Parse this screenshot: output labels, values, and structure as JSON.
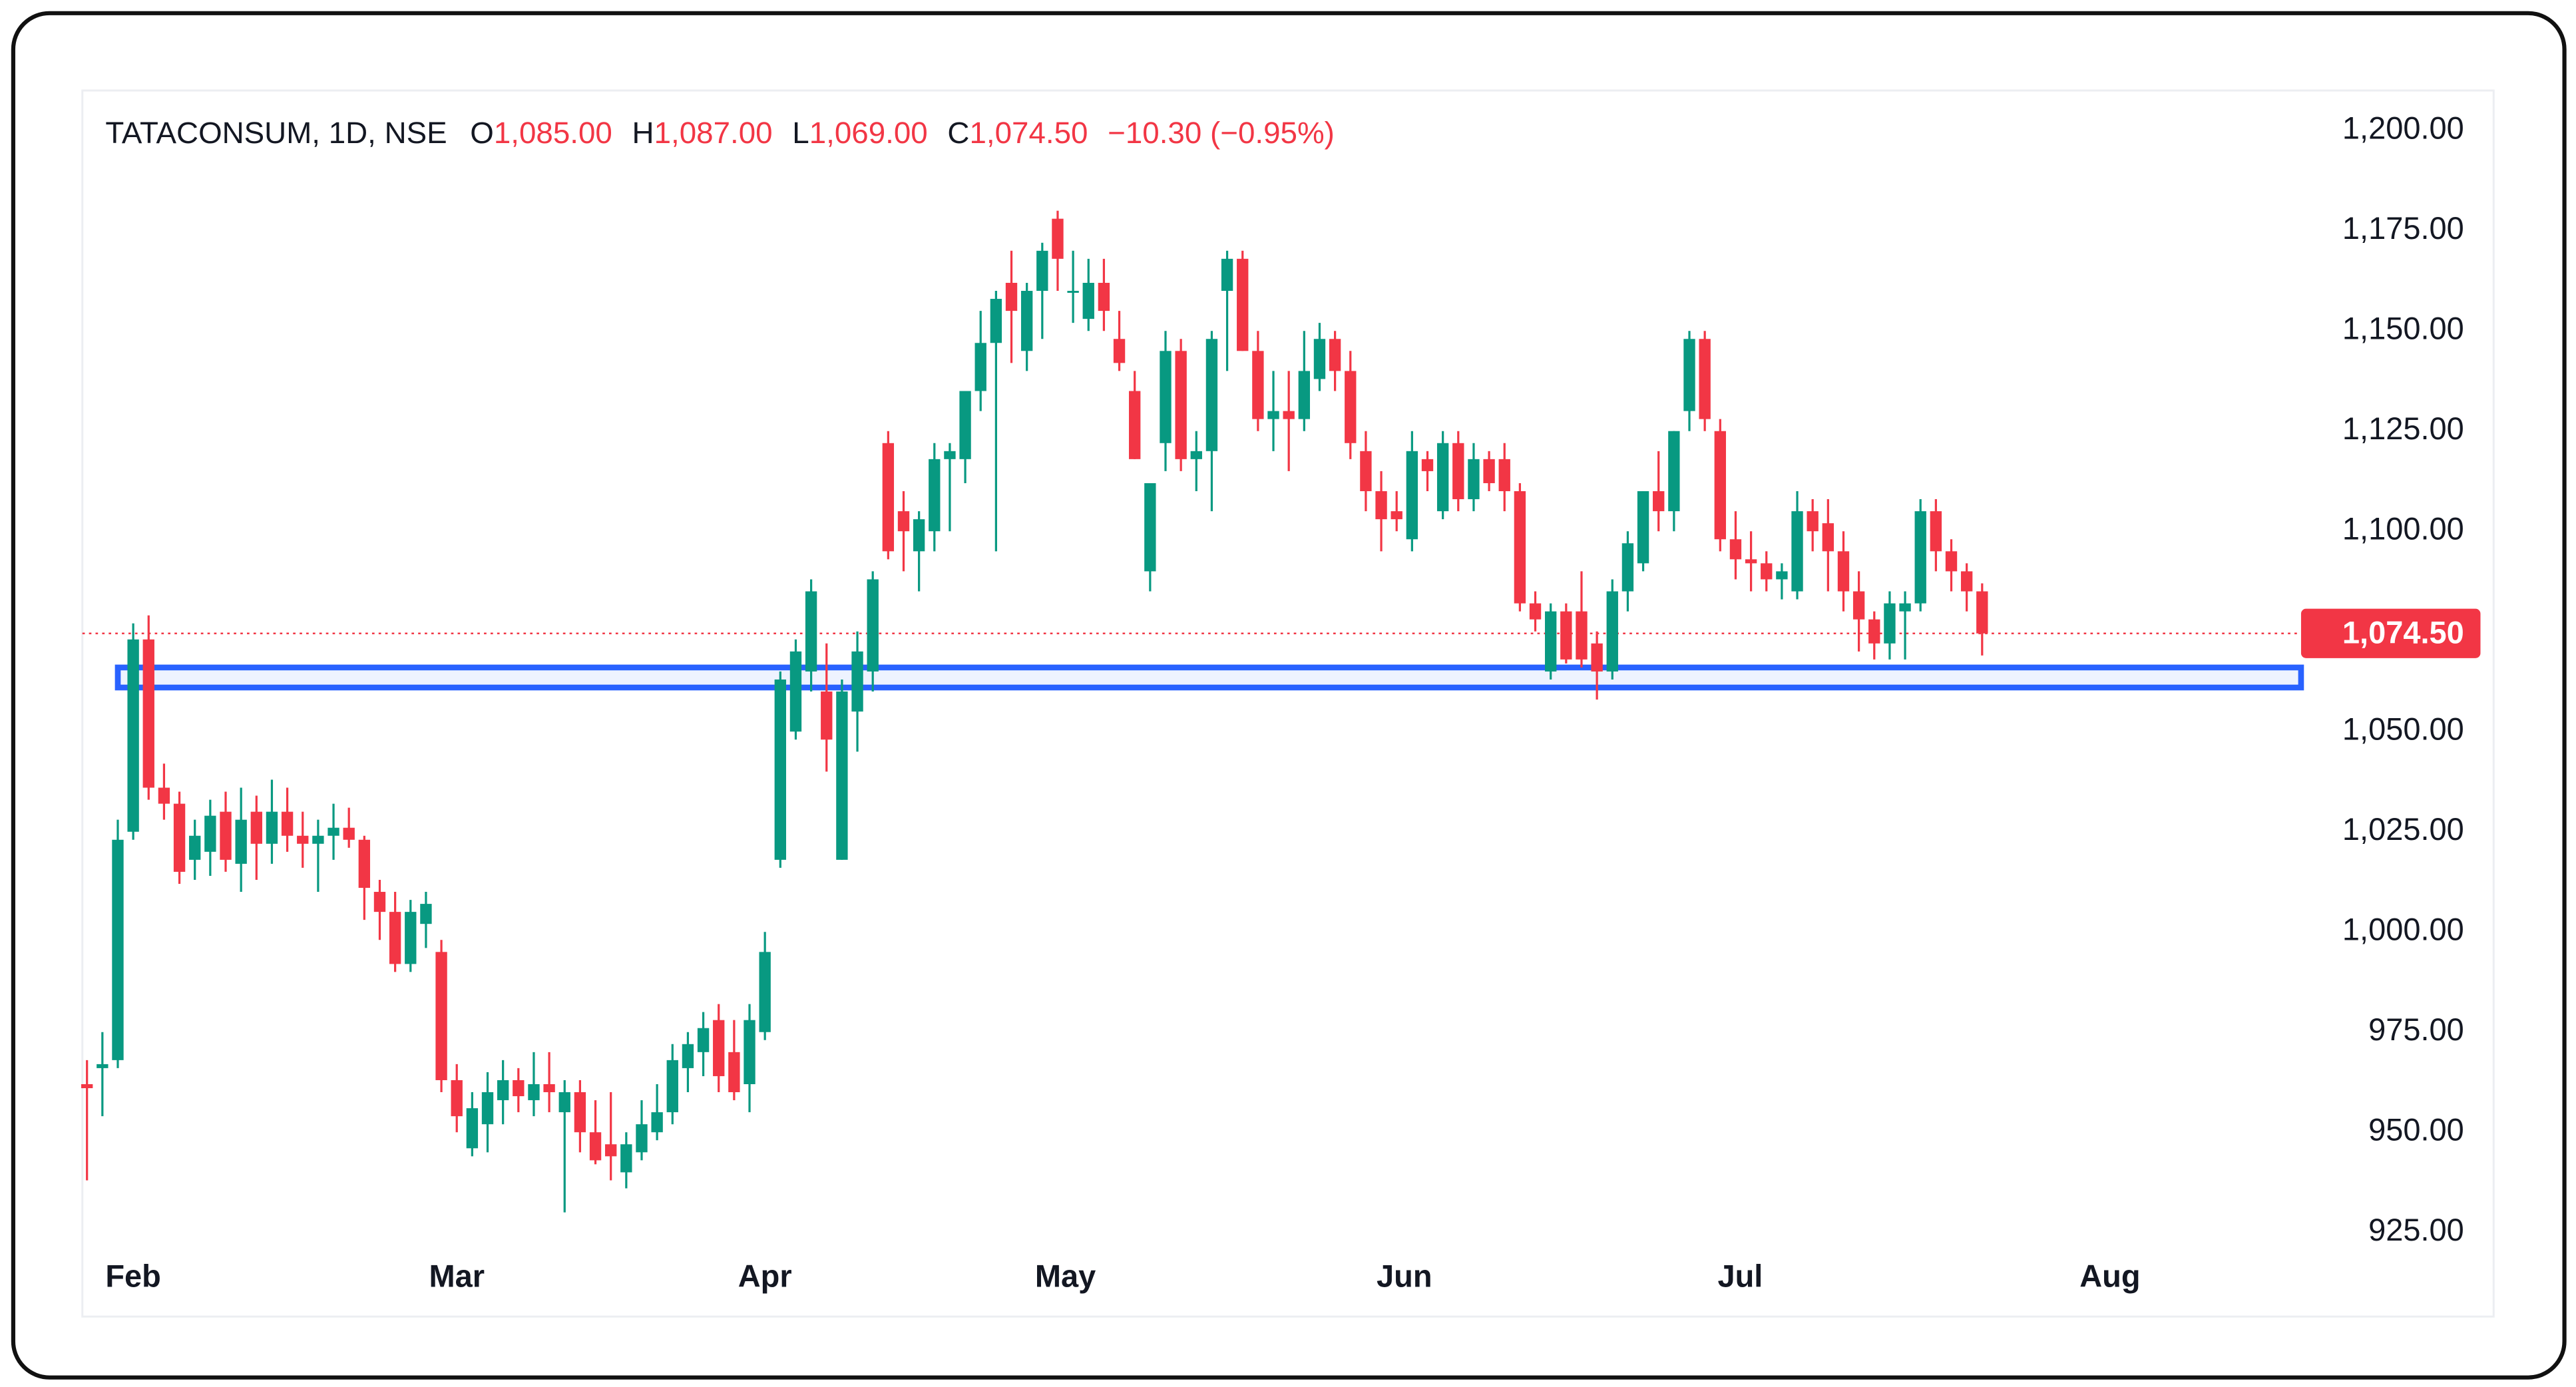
{
  "chart_data": {
    "type": "candlestick",
    "title": "TATACONSUM, 1D, NSE",
    "ohlc_legend": [
      {
        "key": "O",
        "value": "1,085.00"
      },
      {
        "key": "H",
        "value": "1,087.00"
      },
      {
        "key": "L",
        "value": "1,069.00"
      },
      {
        "key": "C",
        "value": "1,074.50"
      }
    ],
    "change": "−10.30 (−0.95%)",
    "up_color": "#089981",
    "down_color": "#f23645",
    "open": [
      962,
      966,
      968,
      1025,
      1073,
      1036,
      1032,
      1018,
      1020,
      1030,
      1017,
      1030,
      1022,
      1030,
      1024,
      1022,
      1024,
      1026,
      1023,
      1010,
      1005,
      992,
      1002,
      995,
      963,
      946,
      952,
      958,
      963,
      958,
      962,
      955,
      960,
      950,
      947,
      940,
      945,
      950,
      955,
      966,
      970,
      978,
      970,
      962,
      975,
      1018,
      1050,
      1065,
      1060,
      1018,
      1055,
      1065,
      1122,
      1105,
      1095,
      1100,
      1118,
      1118,
      1135,
      1147,
      1162,
      1145,
      1160,
      1178,
      1160,
      1153,
      1162,
      1148,
      1135,
      1090,
      1122,
      1145,
      1118,
      1120,
      1160,
      1168,
      1145,
      1128,
      1130,
      1128,
      1138,
      1148,
      1140,
      1120,
      1110,
      1105,
      1098,
      1118,
      1105,
      1122,
      1108,
      1118,
      1118,
      1110,
      1082,
      1065,
      1080,
      1080,
      1072,
      1065,
      1085,
      1092,
      1110,
      1105,
      1130,
      1148,
      1125,
      1098,
      1093,
      1092,
      1088,
      1085,
      1105,
      1102,
      1095,
      1085,
      1078,
      1072,
      1080,
      1082,
      1105,
      1095,
      1090,
      1085
    ],
    "high": [
      968,
      975,
      1028,
      1077,
      1079,
      1042,
      1035,
      1028,
      1033,
      1035,
      1036,
      1034,
      1038,
      1036,
      1030,
      1028,
      1032,
      1031,
      1024,
      1013,
      1010,
      1008,
      1010,
      998,
      967,
      960,
      965,
      968,
      966,
      970,
      970,
      963,
      963,
      958,
      960,
      950,
      958,
      962,
      972,
      975,
      980,
      982,
      978,
      982,
      1000,
      1065,
      1073,
      1088,
      1072,
      1063,
      1075,
      1090,
      1125,
      1110,
      1105,
      1122,
      1122,
      1135,
      1155,
      1160,
      1170,
      1162,
      1172,
      1180,
      1170,
      1168,
      1168,
      1155,
      1140,
      1112,
      1150,
      1148,
      1125,
      1150,
      1170,
      1170,
      1150,
      1140,
      1140,
      1150,
      1152,
      1150,
      1145,
      1125,
      1115,
      1110,
      1125,
      1120,
      1125,
      1125,
      1122,
      1120,
      1122,
      1112,
      1085,
      1082,
      1082,
      1090,
      1075,
      1088,
      1100,
      1110,
      1120,
      1125,
      1150,
      1150,
      1128,
      1105,
      1100,
      1095,
      1092,
      1110,
      1108,
      1108,
      1100,
      1090,
      1080,
      1085,
      1085,
      1108,
      1108,
      1098,
      1092,
      1087
    ],
    "low": [
      938,
      954,
      966,
      1023,
      1033,
      1028,
      1012,
      1013,
      1014,
      1015,
      1010,
      1013,
      1017,
      1020,
      1016,
      1010,
      1018,
      1021,
      1003,
      998,
      990,
      990,
      996,
      960,
      950,
      944,
      945,
      952,
      955,
      954,
      955,
      930,
      945,
      942,
      938,
      936,
      943,
      948,
      952,
      960,
      964,
      960,
      958,
      955,
      973,
      1016,
      1048,
      1060,
      1040,
      1018,
      1045,
      1060,
      1093,
      1090,
      1085,
      1095,
      1100,
      1112,
      1130,
      1095,
      1142,
      1140,
      1148,
      1160,
      1152,
      1150,
      1150,
      1140,
      1118,
      1085,
      1115,
      1115,
      1110,
      1105,
      1140,
      1145,
      1125,
      1120,
      1115,
      1125,
      1135,
      1135,
      1118,
      1105,
      1095,
      1100,
      1095,
      1110,
      1103,
      1105,
      1105,
      1110,
      1105,
      1080,
      1075,
      1063,
      1067,
      1066,
      1058,
      1063,
      1080,
      1090,
      1100,
      1100,
      1125,
      1125,
      1095,
      1088,
      1085,
      1085,
      1083,
      1083,
      1095,
      1085,
      1080,
      1070,
      1068,
      1068,
      1068,
      1080,
      1090,
      1085,
      1080,
      1069
    ],
    "close": [
      961,
      967,
      1023,
      1073,
      1036,
      1032,
      1015,
      1024,
      1029,
      1018,
      1028,
      1022,
      1030,
      1024,
      1022,
      1024,
      1026,
      1023,
      1011,
      1005,
      992,
      1005,
      1007,
      963,
      954,
      956,
      960,
      963,
      959,
      962,
      960,
      960,
      950,
      943,
      944,
      947,
      952,
      955,
      968,
      972,
      976,
      964,
      960,
      978,
      995,
      1063,
      1070,
      1085,
      1048,
      1060,
      1070,
      1088,
      1095,
      1100,
      1103,
      1118,
      1120,
      1135,
      1147,
      1158,
      1155,
      1160,
      1170,
      1168,
      1160,
      1162,
      1155,
      1142,
      1118,
      1112,
      1145,
      1118,
      1120,
      1148,
      1168,
      1145,
      1128,
      1130,
      1128,
      1140,
      1148,
      1140,
      1122,
      1110,
      1103,
      1103,
      1120,
      1115,
      1122,
      1108,
      1118,
      1112,
      1110,
      1082,
      1078,
      1080,
      1068,
      1068,
      1065,
      1085,
      1097,
      1110,
      1105,
      1125,
      1148,
      1128,
      1098,
      1093,
      1092,
      1088,
      1090,
      1105,
      1100,
      1095,
      1085,
      1078,
      1072,
      1082,
      1082,
      1105,
      1095,
      1090,
      1085,
      1074.5
    ],
    "xlim": [
      -0.3,
      143.7
    ],
    "xticks": [
      {
        "value": 3,
        "label": "Feb"
      },
      {
        "value": 24,
        "label": "Mar"
      },
      {
        "value": 44,
        "label": "Apr"
      },
      {
        "value": 63.5,
        "label": "May"
      },
      {
        "value": 85.5,
        "label": "Jun"
      },
      {
        "value": 107.3,
        "label": "Jul"
      },
      {
        "value": 131.3,
        "label": "Aug"
      }
    ],
    "ylim": [
      904,
      1210
    ],
    "yticks": [
      {
        "value": 1200,
        "label": "1,200.00"
      },
      {
        "value": 1175,
        "label": "1,175.00"
      },
      {
        "value": 1150,
        "label": "1,150.00"
      },
      {
        "value": 1125,
        "label": "1,125.00"
      },
      {
        "value": 1100,
        "label": "1,100.00"
      },
      {
        "value": 1050,
        "label": "1,050.00"
      },
      {
        "value": 1025,
        "label": "1,025.00"
      },
      {
        "value": 1000,
        "label": "1,000.00"
      },
      {
        "value": 975,
        "label": "975.00"
      },
      {
        "value": 950,
        "label": "950.00"
      },
      {
        "value": 925,
        "label": "925.00"
      }
    ],
    "last_price": {
      "value": 1074.5,
      "label": "1,074.50"
    },
    "zone": {
      "x": 2,
      "low": 1061,
      "high": 1066,
      "color": "#2962ff"
    }
  }
}
